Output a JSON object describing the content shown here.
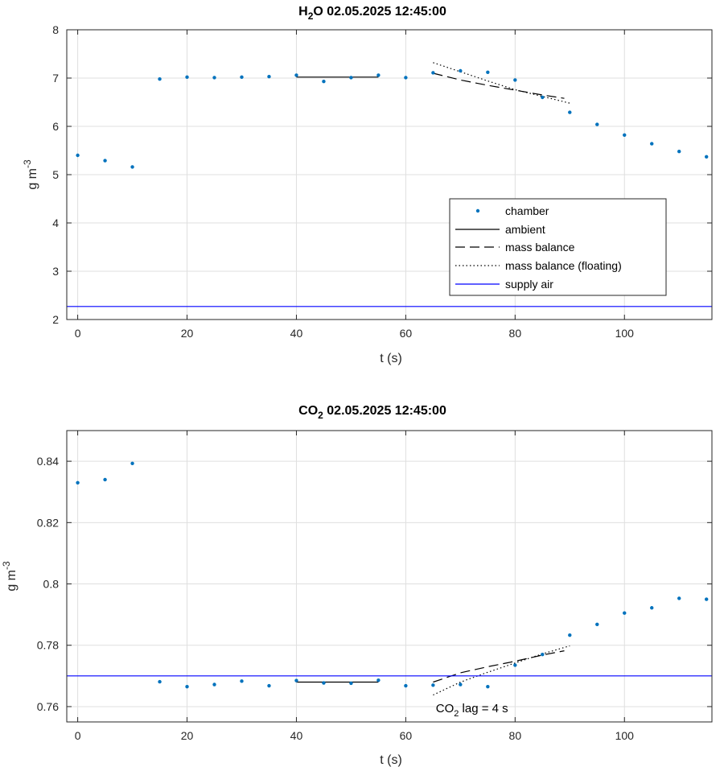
{
  "chart_data": [
    {
      "type": "scatter",
      "title": {
        "base": "H",
        "sub": "2",
        "rest": "O  02.05.2025 12:45:00"
      },
      "xlabel": "t (s)",
      "ylabel": {
        "base": "g m",
        "sup": "-3"
      },
      "xlim": [
        -2,
        116
      ],
      "ylim": [
        2,
        8
      ],
      "xticks": [
        0,
        20,
        40,
        60,
        80,
        100
      ],
      "yticks": [
        2,
        3,
        4,
        5,
        6,
        7,
        8
      ],
      "ytick_labels": [
        "2",
        "3",
        "4",
        "5",
        "6",
        "7",
        "8"
      ],
      "grid": true,
      "legend_position": "inside-lower-right",
      "series": [
        {
          "name": "chamber",
          "kind": "points",
          "color": "#0072BD",
          "x": [
            0,
            5,
            10,
            15,
            20,
            25,
            30,
            35,
            40,
            45,
            50,
            55,
            60,
            65,
            70,
            75,
            80,
            85,
            90,
            95,
            100,
            105,
            110,
            115
          ],
          "y": [
            5.4,
            5.29,
            5.16,
            6.98,
            7.02,
            7.01,
            7.02,
            7.03,
            7.06,
            6.93,
            7.01,
            7.06,
            7.01,
            7.11,
            7.15,
            7.12,
            6.96,
            6.6,
            6.29,
            6.04,
            5.82,
            5.64,
            5.48,
            5.37
          ]
        },
        {
          "name": "ambient",
          "kind": "solid",
          "color": "#000000",
          "x": [
            40,
            55
          ],
          "y": [
            7.02,
            7.02
          ]
        },
        {
          "name": "mass balance",
          "kind": "dash",
          "color": "#000000",
          "x": [
            65,
            70,
            75,
            80,
            85,
            89
          ],
          "y": [
            7.1,
            6.96,
            6.85,
            6.75,
            6.65,
            6.58
          ]
        },
        {
          "name": "mass balance (floating)",
          "kind": "dot",
          "color": "#000000",
          "x": [
            65,
            70,
            75,
            80,
            85,
            90
          ],
          "y": [
            7.32,
            7.13,
            6.94,
            6.76,
            6.62,
            6.48
          ]
        },
        {
          "name": "supply air",
          "kind": "solid",
          "color": "#0000FF",
          "x": [
            -2,
            116
          ],
          "y": [
            2.27,
            2.27
          ]
        }
      ]
    },
    {
      "type": "scatter",
      "title": {
        "base": "CO",
        "sub": "2",
        "rest": "  02.05.2025 12:45:00"
      },
      "xlabel": "t (s)",
      "ylabel": {
        "base": "g m",
        "sup": "-3"
      },
      "xlim": [
        -2,
        116
      ],
      "ylim": [
        0.755,
        0.85
      ],
      "xticks": [
        0,
        20,
        40,
        60,
        80,
        100
      ],
      "yticks": [
        0.76,
        0.78,
        0.8,
        0.82,
        0.84
      ],
      "ytick_labels": [
        "0.76",
        "0.78",
        "0.8",
        "0.82",
        "0.84"
      ],
      "grid": true,
      "annotation": {
        "base": "CO",
        "sub": "2",
        "rest": " lag = 4 s",
        "x": 65.5,
        "y": 0.7595
      },
      "series": [
        {
          "name": "chamber",
          "kind": "points",
          "color": "#0072BD",
          "x": [
            0,
            5,
            10,
            15,
            20,
            25,
            30,
            35,
            40,
            45,
            50,
            55,
            60,
            65,
            70,
            75,
            80,
            85,
            90,
            95,
            100,
            105,
            110,
            115
          ],
          "y": [
            0.833,
            0.834,
            0.8393,
            0.7681,
            0.7665,
            0.7672,
            0.7683,
            0.7668,
            0.7685,
            0.7677,
            0.7676,
            0.7686,
            0.7668,
            0.767,
            0.7672,
            0.7665,
            0.7735,
            0.777,
            0.7833,
            0.7868,
            0.7905,
            0.7922,
            0.7953,
            0.795
          ]
        },
        {
          "name": "ambient",
          "kind": "solid",
          "color": "#000000",
          "x": [
            40,
            55
          ],
          "y": [
            0.768,
            0.768
          ]
        },
        {
          "name": "mass balance",
          "kind": "dash",
          "color": "#000000",
          "x": [
            65,
            70,
            75,
            80,
            85,
            89
          ],
          "y": [
            0.768,
            0.771,
            0.773,
            0.7748,
            0.7768,
            0.7782
          ]
        },
        {
          "name": "mass balance (floating)",
          "kind": "dot",
          "color": "#000000",
          "x": [
            65,
            70,
            75,
            80,
            85,
            90
          ],
          "y": [
            0.7638,
            0.768,
            0.7712,
            0.7742,
            0.7772,
            0.7798
          ]
        },
        {
          "name": "supply air",
          "kind": "solid",
          "color": "#0000FF",
          "x": [
            -2,
            116
          ],
          "y": [
            0.77,
            0.77
          ]
        }
      ]
    }
  ]
}
